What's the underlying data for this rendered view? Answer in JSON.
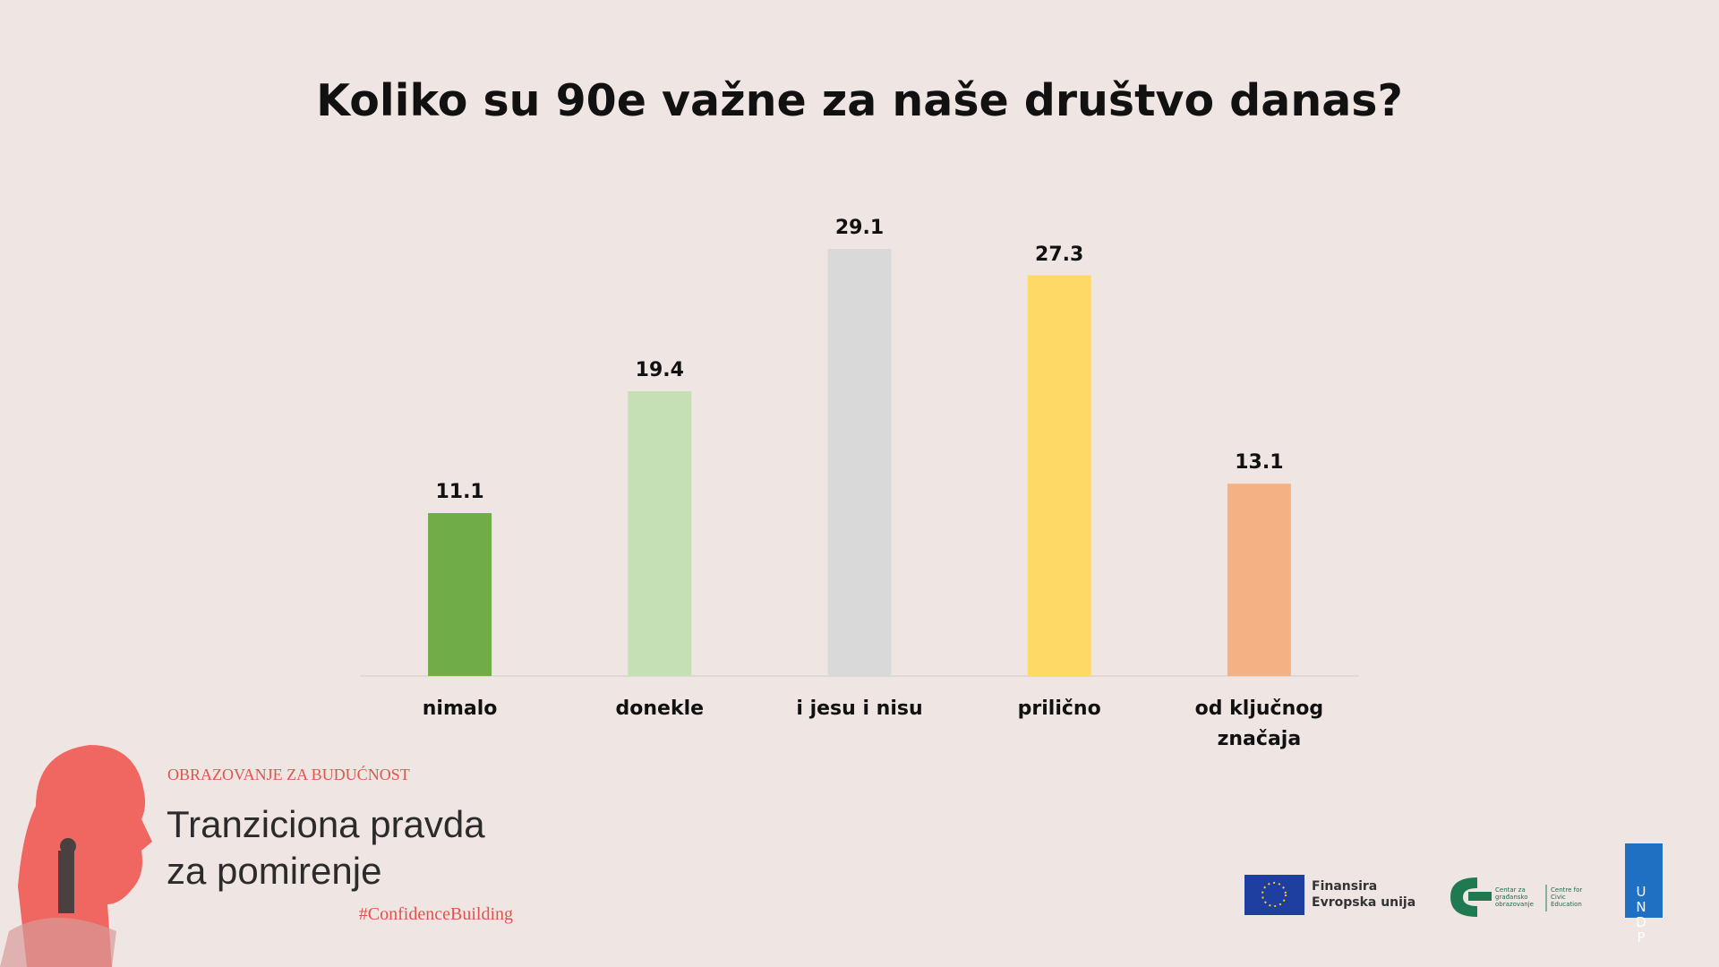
{
  "chart_data": {
    "type": "bar",
    "title": "Koliko su 90e važne za naše društvo danas?",
    "categories": [
      "nimalo",
      "donekle",
      "i jesu i nisu",
      "prilično",
      "od ključnog značaja"
    ],
    "values": [
      11.1,
      19.4,
      29.1,
      27.3,
      13.1
    ],
    "colors": [
      "#70ad47",
      "#c5e0b4",
      "#d9d9d9",
      "#ffd966",
      "#f4b183"
    ],
    "grid": false
  },
  "footer": {
    "kicker": "OBRAZOVANJE ZA BUDUĆNOST",
    "title_lines": [
      "Tranziciona pravda",
      "za pomirenje"
    ],
    "hashtag": "#ConfidenceBuilding",
    "eu_lines": [
      "Finansira",
      "Evropska unija"
    ],
    "cce_lines": [
      "Centar za građansko obrazovanje",
      "Centre for Civic Education"
    ],
    "undp": "UNDP"
  }
}
